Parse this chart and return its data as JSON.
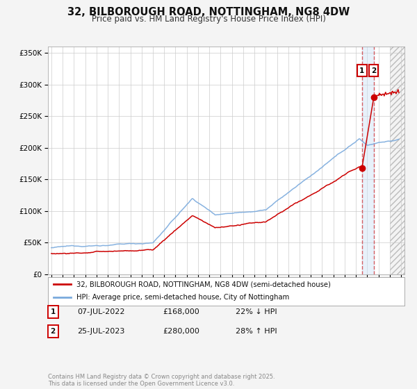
{
  "title": "32, BILBOROUGH ROAD, NOTTINGHAM, NG8 4DW",
  "subtitle": "Price paid vs. HM Land Registry's House Price Index (HPI)",
  "legend_line1": "32, BILBOROUGH ROAD, NOTTINGHAM, NG8 4DW (semi-detached house)",
  "legend_line2": "HPI: Average price, semi-detached house, City of Nottingham",
  "sale1_label": "1",
  "sale1_date": "07-JUL-2022",
  "sale1_price": "£168,000",
  "sale1_hpi": "22% ↓ HPI",
  "sale1_year": 2022.52,
  "sale1_value": 168000,
  "sale2_label": "2",
  "sale2_date": "25-JUL-2023",
  "sale2_price": "£280,000",
  "sale2_hpi": "28% ↑ HPI",
  "sale2_year": 2023.56,
  "sale2_value": 280000,
  "red_color": "#cc0000",
  "blue_color": "#7aaadd",
  "background_color": "#f4f4f4",
  "plot_bg_color": "#ffffff",
  "grid_color": "#cccccc",
  "hatch_color": "#aaaaaa",
  "vline_color": "#cc0000",
  "shade_color": "#cce0f5",
  "shade_alpha": 0.45,
  "ylim": [
    0,
    360000
  ],
  "xlim_left": 1994.7,
  "xlim_right": 2026.3,
  "future_start": 2025.0,
  "footer": "Contains HM Land Registry data © Crown copyright and database right 2025.\nThis data is licensed under the Open Government Licence v3.0."
}
